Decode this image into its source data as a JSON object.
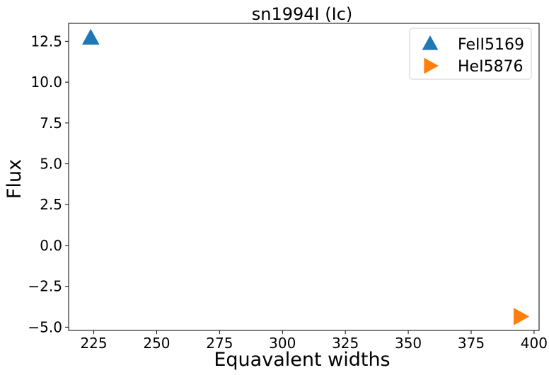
{
  "chart_data": {
    "type": "scatter",
    "title": "sn1994I (Ic)",
    "xlabel": "Equavalent widths",
    "ylabel": "Flux",
    "xlim": [
      215,
      402
    ],
    "ylim": [
      -5.2,
      13.6
    ],
    "xticks": [
      225,
      250,
      275,
      300,
      325,
      350,
      375,
      400
    ],
    "xtick_labels": [
      "225",
      "250",
      "275",
      "300",
      "325",
      "350",
      "375",
      "400"
    ],
    "yticks": [
      12.5,
      10.0,
      7.5,
      5.0,
      2.5,
      0.0,
      -2.5,
      -5.0
    ],
    "ytick_labels": [
      "12.5",
      "10.0",
      "7.5",
      "5.0",
      "2.5",
      "0.0",
      "−2.5",
      "−5.0"
    ],
    "grid": false,
    "legend_position": "top-right",
    "series": [
      {
        "name": "FeII5169",
        "marker": "triangle-up",
        "color": "#1f77b4",
        "x": [
          223.8
        ],
        "y": [
          12.7
        ]
      },
      {
        "name": "HeI5876",
        "marker": "triangle-right",
        "color": "#ff7f0e",
        "x": [
          394.5
        ],
        "y": [
          -4.35
        ]
      }
    ]
  }
}
